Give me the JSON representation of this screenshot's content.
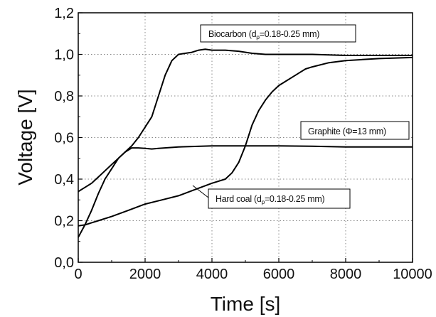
{
  "chart_data": {
    "type": "line",
    "xlabel": "Time [s]",
    "ylabel": "Voltage [V]",
    "xlim": [
      0,
      10000
    ],
    "ylim": [
      0,
      1.2
    ],
    "x_ticks": [
      0,
      2000,
      4000,
      6000,
      8000,
      10000
    ],
    "x_tick_labels": [
      "0",
      "2000",
      "4000",
      "6000",
      "8000",
      "10000"
    ],
    "y_ticks": [
      0,
      0.2,
      0.4,
      0.6,
      0.8,
      1.0,
      1.2
    ],
    "y_tick_labels": [
      "0,0",
      "0,2",
      "0,4",
      "0,6",
      "0,8",
      "1,0",
      "1,2"
    ],
    "grid": true,
    "legend": "none",
    "series": [
      {
        "name": "Biocarbon (dp=0.18-0.25 mm)",
        "color": "#000000",
        "x": [
          0,
          200,
          400,
          600,
          800,
          1000,
          1200,
          1400,
          1600,
          1800,
          2000,
          2200,
          2400,
          2600,
          2800,
          3000,
          3200,
          3400,
          3600,
          3800,
          4000,
          4400,
          4800,
          5200,
          5600,
          6000,
          7000,
          8000,
          9000,
          10000
        ],
        "y": [
          0.34,
          0.36,
          0.38,
          0.41,
          0.44,
          0.47,
          0.5,
          0.53,
          0.56,
          0.6,
          0.65,
          0.7,
          0.8,
          0.9,
          0.97,
          1.0,
          1.005,
          1.01,
          1.02,
          1.025,
          1.02,
          1.02,
          1.015,
          1.005,
          1.0,
          1.0,
          1.0,
          0.995,
          0.995,
          0.995
        ]
      },
      {
        "name": "Graphite (Φ=13 mm)",
        "color": "#000000",
        "x": [
          0,
          200,
          400,
          600,
          800,
          1000,
          1200,
          1400,
          1600,
          1800,
          2000,
          2200,
          2400,
          3000,
          4000,
          5000,
          6000,
          7000,
          8000,
          9000,
          10000
        ],
        "y": [
          0.12,
          0.18,
          0.25,
          0.33,
          0.4,
          0.45,
          0.5,
          0.53,
          0.55,
          0.55,
          0.548,
          0.545,
          0.548,
          0.555,
          0.56,
          0.56,
          0.56,
          0.558,
          0.555,
          0.555,
          0.555
        ]
      },
      {
        "name": "Hard coal (dp=0.18-0.25 mm)",
        "color": "#000000",
        "x": [
          0,
          200,
          400,
          600,
          1000,
          1500,
          2000,
          2500,
          3000,
          3500,
          4000,
          4400,
          4600,
          4800,
          5000,
          5200,
          5400,
          5600,
          5800,
          6000,
          6200,
          6400,
          6600,
          6800,
          7000,
          7500,
          8000,
          8500,
          9000,
          10000
        ],
        "y": [
          0.175,
          0.18,
          0.19,
          0.2,
          0.22,
          0.25,
          0.28,
          0.3,
          0.32,
          0.35,
          0.38,
          0.4,
          0.43,
          0.48,
          0.56,
          0.66,
          0.73,
          0.78,
          0.82,
          0.85,
          0.87,
          0.89,
          0.91,
          0.93,
          0.94,
          0.96,
          0.97,
          0.975,
          0.98,
          0.985
        ]
      }
    ],
    "annotations": [
      {
        "text": "Biocarbon (d",
        "sub": "p",
        "rest": "=0.18-0.25 mm)",
        "points_to": "Biocarbon (dp=0.18-0.25 mm)"
      },
      {
        "text": "Graphite (Φ=13 mm)",
        "sub": "",
        "rest": "",
        "points_to": "Graphite (Φ=13 mm)"
      },
      {
        "text": "Hard coal (d",
        "sub": "p",
        "rest": "=0.18-0.25 mm)",
        "points_to": "Hard coal (dp=0.18-0.25 mm)"
      }
    ]
  }
}
